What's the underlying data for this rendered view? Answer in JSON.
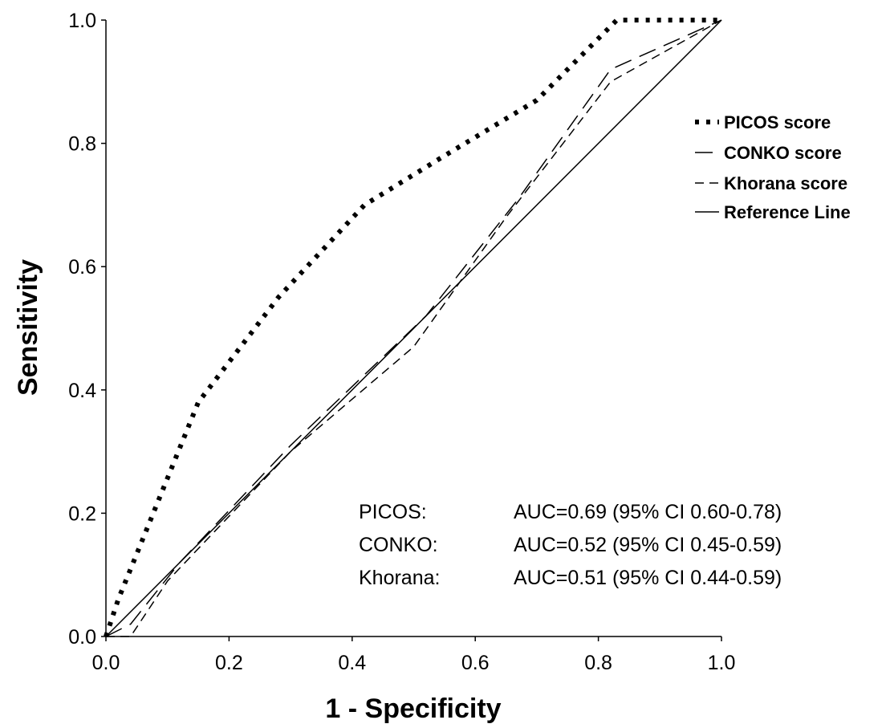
{
  "chart_data": {
    "type": "line",
    "title": "",
    "xlabel": "1 - Specificity",
    "ylabel": "Sensitivity",
    "xlim": [
      0,
      1
    ],
    "ylim": [
      0,
      1
    ],
    "x_ticks": [
      "0.0",
      "0.2",
      "0.4",
      "0.6",
      "0.8",
      "1.0"
    ],
    "y_ticks": [
      "0.0",
      "0.2",
      "0.4",
      "0.6",
      "0.8",
      "1.0"
    ],
    "grid": false,
    "legend_position": "top-right",
    "series": [
      {
        "name": "PICOS score",
        "style": "dotted",
        "x": [
          0.0,
          0.02,
          0.15,
          0.28,
          0.42,
          0.55,
          0.7,
          0.83,
          0.9,
          1.0
        ],
        "y": [
          0.0,
          0.06,
          0.38,
          0.55,
          0.7,
          0.78,
          0.87,
          1.0,
          1.0,
          1.0
        ]
      },
      {
        "name": "CONKO score",
        "style": "long-dash",
        "x": [
          0.0,
          0.04,
          0.12,
          0.3,
          0.52,
          0.67,
          0.82,
          1.0
        ],
        "y": [
          0.0,
          0.02,
          0.12,
          0.31,
          0.52,
          0.71,
          0.92,
          1.0
        ]
      },
      {
        "name": "Khorana score",
        "style": "short-dash",
        "x": [
          0.0,
          0.04,
          0.1,
          0.3,
          0.5,
          0.65,
          0.82,
          1.0
        ],
        "y": [
          0.0,
          0.0,
          0.09,
          0.3,
          0.47,
          0.68,
          0.9,
          1.0
        ]
      },
      {
        "name": "Reference Line",
        "style": "solid",
        "x": [
          0.0,
          1.0
        ],
        "y": [
          0.0,
          1.0
        ]
      }
    ],
    "annotations": [
      {
        "label": "PICOS:",
        "value": "AUC=0.69 (95% CI 0.60-0.78)"
      },
      {
        "label": "CONKO:",
        "value": "AUC=0.52 (95% CI 0.45-0.59)"
      },
      {
        "label": "Khorana:",
        "value": "AUC=0.51 (95% CI 0.44-0.59)"
      }
    ]
  }
}
